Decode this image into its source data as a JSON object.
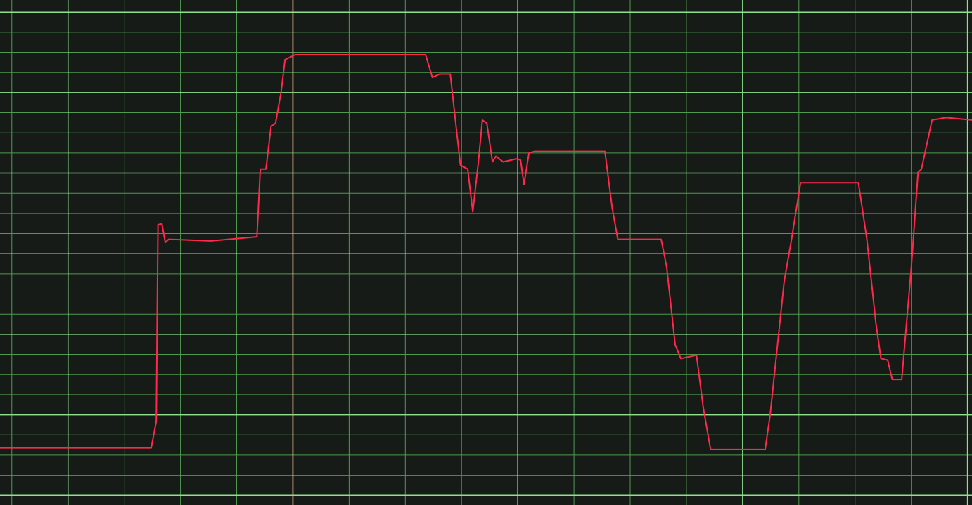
{
  "chart_data": {
    "type": "line",
    "xlim": [
      -0.21,
      17.08
    ],
    "ylim": [
      -0.12,
      6.15
    ],
    "xticks": [
      0,
      1,
      2,
      3,
      4,
      5,
      6,
      7,
      8,
      9,
      10,
      11,
      12,
      13,
      14,
      15,
      16,
      17
    ],
    "major_xticks": [
      1,
      5,
      9,
      13,
      17
    ],
    "yticks": [
      0,
      0.25,
      0.5,
      0.75,
      1,
      1.25,
      1.5,
      1.75,
      2,
      2.25,
      2.5,
      2.75,
      3,
      3.25,
      3.5,
      3.75,
      4,
      4.25,
      4.5,
      4.75,
      5,
      5.25,
      5.5,
      5.75,
      6
    ],
    "major_yticks": [
      0,
      1,
      2,
      3,
      4,
      5,
      6
    ],
    "grid": true,
    "grid_color": "#4f9a4f",
    "major_grid_color": "#8ee08e",
    "cursor": {
      "x": 5,
      "color": "#ff9a8a"
    },
    "series": [
      {
        "color": "#ff2a4a",
        "x": [
          -0.21,
          2.48,
          2.57,
          2.6,
          2.67,
          2.73,
          2.79,
          3.54,
          4.36,
          4.42,
          4.52,
          4.61,
          4.69,
          4.79,
          4.86,
          5.04,
          7.36,
          7.48,
          7.61,
          7.8,
          7.98,
          8.11,
          8.2,
          8.3,
          8.37,
          8.45,
          8.55,
          8.61,
          8.74,
          8.99,
          9.05,
          9.11,
          9.2,
          9.3,
          10.55,
          10.68,
          10.78,
          11.55,
          11.65,
          11.8,
          11.9,
          12.18,
          12.3,
          12.43,
          13.4,
          13.49,
          13.74,
          13.87,
          14.03,
          15.06,
          15.21,
          15.37,
          15.46,
          15.58,
          15.66,
          15.83,
          16.0,
          16.12,
          16.18,
          16.37,
          16.62,
          17.08
        ],
        "values": [
          0.59,
          0.59,
          0.92,
          3.36,
          3.37,
          3.14,
          3.18,
          3.16,
          3.21,
          4.05,
          4.05,
          4.58,
          4.62,
          5.01,
          5.41,
          5.47,
          5.47,
          5.19,
          5.23,
          5.23,
          4.1,
          4.05,
          3.52,
          4.14,
          4.66,
          4.62,
          4.14,
          4.21,
          4.14,
          4.18,
          4.16,
          3.86,
          4.25,
          4.27,
          4.27,
          3.57,
          3.18,
          3.18,
          2.83,
          1.87,
          1.7,
          1.74,
          1.09,
          0.57,
          0.57,
          1.0,
          2.66,
          3.18,
          3.88,
          3.88,
          3.18,
          2.14,
          1.7,
          1.68,
          1.44,
          1.44,
          2.83,
          4.01,
          4.05,
          4.66,
          4.69,
          4.66
        ]
      }
    ]
  }
}
